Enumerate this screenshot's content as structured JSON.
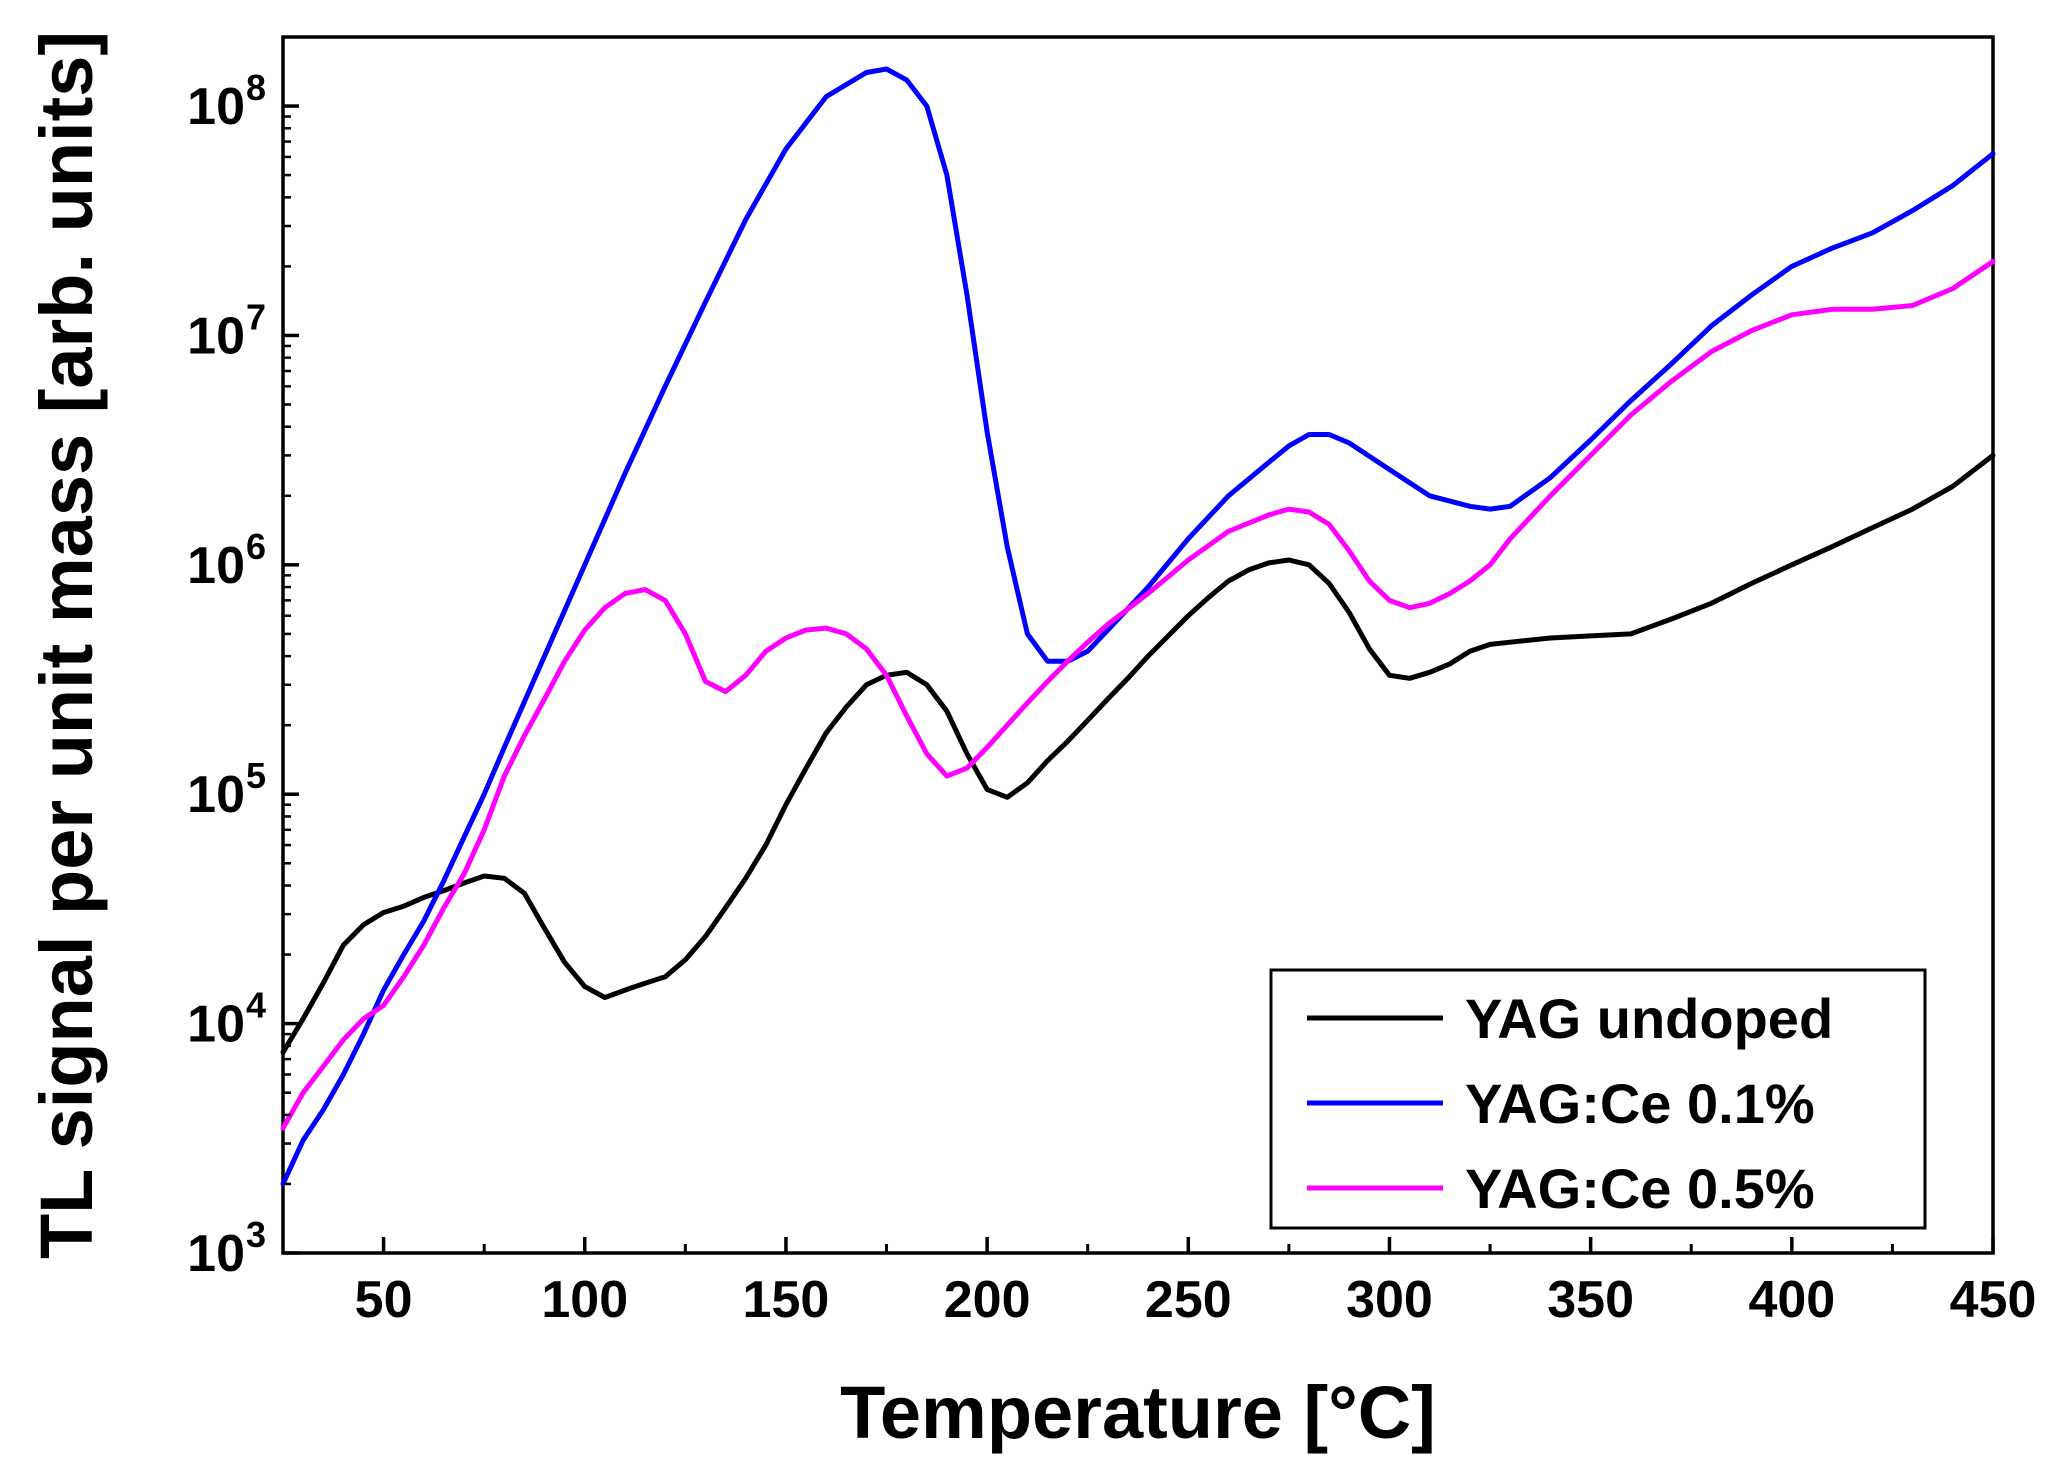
{
  "chart_data": {
    "type": "line",
    "title": "",
    "xlabel": "Temperature",
    "xlabel_unit": "[°C]",
    "ylabel": "TL signal per unit mass [arb. units]",
    "xlim": [
      25,
      450
    ],
    "ylim": [
      1000,
      200000000
    ],
    "yscale": "log",
    "x_ticks": [
      "50",
      "100",
      "150",
      "200",
      "250",
      "300",
      "350",
      "400",
      "450"
    ],
    "y_ticks": [
      {
        "base": "10",
        "exp": "3"
      },
      {
        "base": "10",
        "exp": "4"
      },
      {
        "base": "10",
        "exp": "5"
      },
      {
        "base": "10",
        "exp": "6"
      },
      {
        "base": "10",
        "exp": "7"
      },
      {
        "base": "10",
        "exp": "8"
      }
    ],
    "legend_position": "bottom-right",
    "series": [
      {
        "name": "YAG undoped",
        "color": "#000000",
        "x": [
          25,
          30,
          35,
          40,
          45,
          50,
          55,
          60,
          65,
          70,
          75,
          80,
          85,
          90,
          95,
          100,
          105,
          110,
          115,
          120,
          125,
          130,
          135,
          140,
          145,
          150,
          155,
          160,
          165,
          170,
          175,
          180,
          185,
          190,
          195,
          200,
          205,
          210,
          215,
          220,
          225,
          230,
          235,
          240,
          245,
          250,
          255,
          260,
          265,
          270,
          275,
          280,
          285,
          290,
          295,
          300,
          305,
          310,
          315,
          320,
          325,
          330,
          340,
          350,
          360,
          370,
          380,
          390,
          400,
          410,
          420,
          430,
          440,
          450
        ],
        "y": [
          7500,
          10500,
          15000,
          22000,
          27000,
          30500,
          32500,
          35500,
          38000,
          41000,
          44000,
          43000,
          37000,
          26000,
          18500,
          14500,
          13000,
          14000,
          15000,
          16000,
          19000,
          24000,
          32000,
          43000,
          60000,
          90000,
          130000,
          185000,
          240000,
          300000,
          330000,
          340000,
          300000,
          230000,
          150000,
          105000,
          97000,
          112000,
          140000,
          170000,
          210000,
          260000,
          320000,
          400000,
          490000,
          600000,
          720000,
          850000,
          950000,
          1020000,
          1050000,
          1000000,
          830000,
          620000,
          430000,
          330000,
          320000,
          340000,
          370000,
          420000,
          450000,
          460000,
          480000,
          490000,
          500000,
          580000,
          680000,
          830000,
          1000000,
          1200000,
          1450000,
          1750000,
          2200000,
          3000000
        ]
      },
      {
        "name": "YAG:Ce 0.1%",
        "color": "#0000ff",
        "x": [
          25,
          30,
          35,
          40,
          45,
          50,
          55,
          60,
          65,
          70,
          75,
          80,
          90,
          100,
          110,
          120,
          130,
          140,
          150,
          160,
          170,
          175,
          180,
          185,
          190,
          195,
          200,
          205,
          210,
          215,
          220,
          225,
          230,
          240,
          250,
          260,
          270,
          275,
          280,
          285,
          290,
          300,
          310,
          320,
          325,
          330,
          340,
          350,
          360,
          370,
          380,
          390,
          400,
          410,
          420,
          430,
          440,
          450
        ],
        "y": [
          2000,
          3100,
          4200,
          6000,
          9000,
          14000,
          20000,
          28000,
          42000,
          65000,
          100000,
          160000,
          400000,
          1000000,
          2500000,
          6000000,
          14000000,
          32000000,
          65000000,
          110000000,
          140000000,
          145000000,
          130000000,
          100000000,
          50000000,
          15000000,
          3800000,
          1200000,
          500000,
          380000,
          380000,
          420000,
          520000,
          800000,
          1300000,
          2000000,
          2800000,
          3300000,
          3700000,
          3700000,
          3400000,
          2600000,
          2000000,
          1800000,
          1750000,
          1800000,
          2400000,
          3500000,
          5200000,
          7500000,
          11000000,
          15000000,
          20000000,
          24000000,
          28000000,
          35000000,
          45000000,
          62000000
        ]
      },
      {
        "name": "YAG:Ce 0.5%",
        "color": "#ff00ff",
        "x": [
          25,
          30,
          35,
          40,
          45,
          50,
          55,
          60,
          65,
          70,
          75,
          80,
          85,
          90,
          95,
          100,
          105,
          110,
          115,
          120,
          125,
          130,
          135,
          140,
          145,
          150,
          155,
          160,
          165,
          170,
          175,
          180,
          185,
          190,
          195,
          200,
          205,
          210,
          215,
          220,
          225,
          230,
          240,
          250,
          260,
          270,
          275,
          280,
          285,
          290,
          295,
          300,
          305,
          310,
          315,
          320,
          325,
          330,
          340,
          350,
          360,
          370,
          380,
          390,
          400,
          410,
          420,
          430,
          440,
          450
        ],
        "y": [
          3500,
          5000,
          6500,
          8500,
          10500,
          12000,
          16000,
          22000,
          32000,
          45000,
          70000,
          120000,
          180000,
          260000,
          380000,
          520000,
          650000,
          750000,
          780000,
          700000,
          500000,
          310000,
          280000,
          330000,
          420000,
          480000,
          520000,
          530000,
          500000,
          430000,
          330000,
          220000,
          150000,
          120000,
          130000,
          160000,
          200000,
          250000,
          310000,
          380000,
          460000,
          550000,
          750000,
          1050000,
          1400000,
          1650000,
          1750000,
          1700000,
          1500000,
          1150000,
          850000,
          700000,
          650000,
          680000,
          750000,
          850000,
          1000000,
          1300000,
          2000000,
          3000000,
          4500000,
          6300000,
          8500000,
          10500000,
          12300000,
          13000000,
          13000000,
          13500000,
          16000000,
          21000000
        ]
      }
    ]
  }
}
